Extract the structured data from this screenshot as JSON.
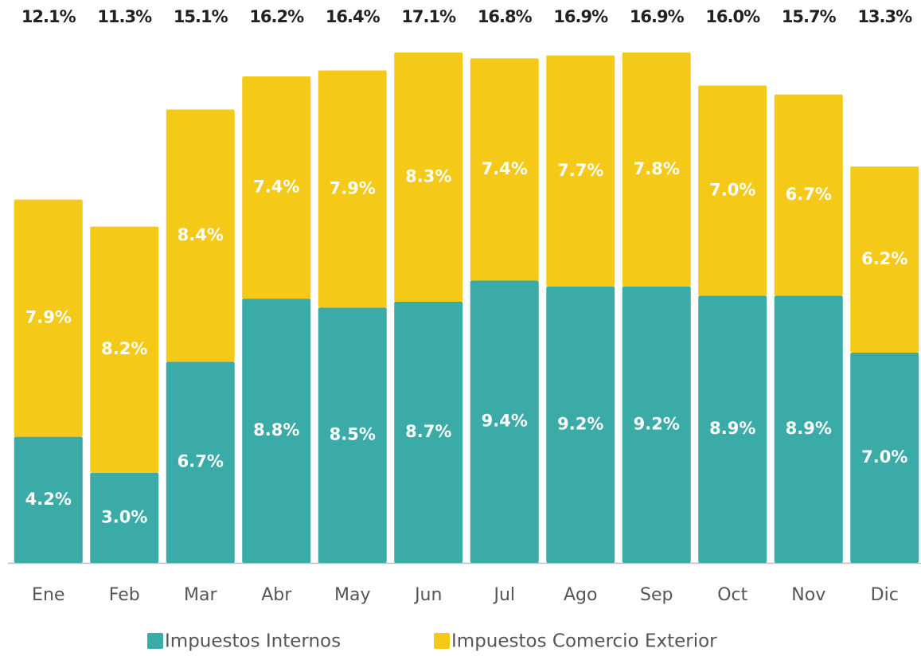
{
  "chart_data": {
    "type": "stacked_bar",
    "categories": [
      "Ene",
      "Feb",
      "Mar",
      "Abr",
      "May",
      "Jun",
      "Jul",
      "Ago",
      "Sep",
      "Oct",
      "Nov",
      "Dic"
    ],
    "series": [
      {
        "name": "Impuestos Internos",
        "color": "#3aaba6",
        "values": [
          4.2,
          3.0,
          6.7,
          8.8,
          8.5,
          8.7,
          9.4,
          9.2,
          9.2,
          8.9,
          8.9,
          7.0
        ],
        "value_labels": [
          "4.2%",
          "3.0%",
          "6.7%",
          "8.8%",
          "8.5%",
          "8.7%",
          "9.4%",
          "9.2%",
          "9.2%",
          "8.9%",
          "8.9%",
          "7.0%"
        ]
      },
      {
        "name": "Impuestos Comercio Exterior",
        "color": "#f5c918",
        "values": [
          7.9,
          8.2,
          8.4,
          7.4,
          7.9,
          8.3,
          7.4,
          7.7,
          7.8,
          7.0,
          6.7,
          6.2
        ],
        "value_labels": [
          "7.9%",
          "8.2%",
          "8.4%",
          "7.4%",
          "7.9%",
          "8.3%",
          "7.4%",
          "7.7%",
          "7.8%",
          "7.0%",
          "6.7%",
          "6.2%"
        ]
      }
    ],
    "totals": {
      "values": [
        12.1,
        11.3,
        15.1,
        16.2,
        16.4,
        17.1,
        16.8,
        16.9,
        16.9,
        16.0,
        15.7,
        13.3
      ],
      "value_labels": [
        "12.1%",
        "11.3%",
        "15.1%",
        "16.2%",
        "16.4%",
        "17.1%",
        "16.8%",
        "16.9%",
        "16.9%",
        "16.0%",
        "15.7%",
        "13.3%"
      ]
    },
    "ylim": [
      0,
      17.5
    ],
    "legend": "bottom"
  }
}
